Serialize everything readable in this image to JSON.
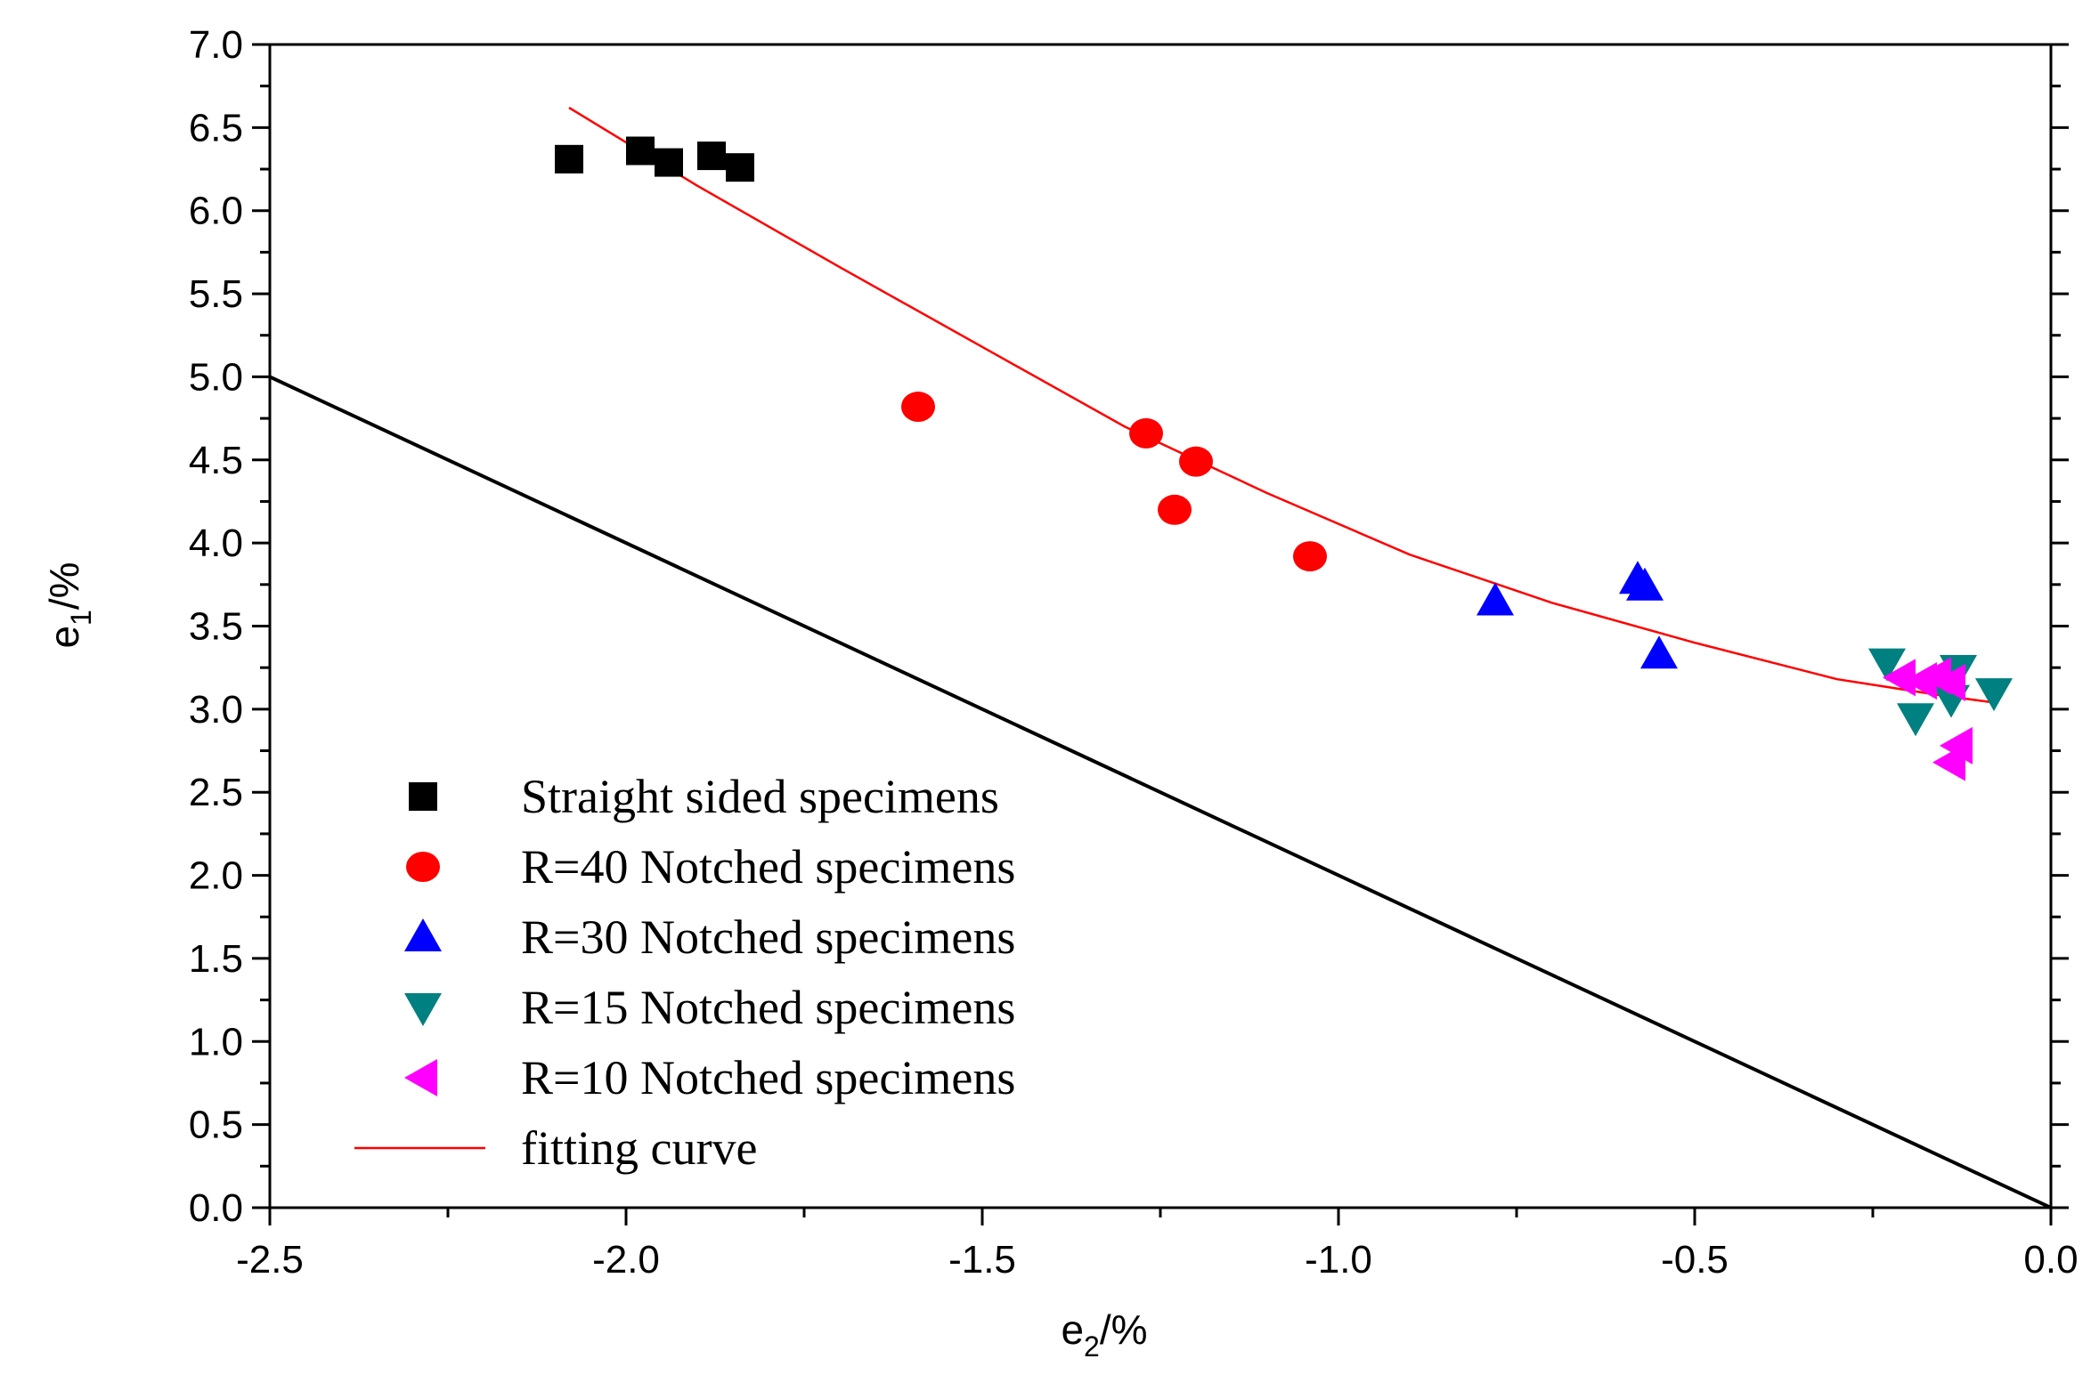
{
  "chart_data": {
    "type": "scatter",
    "title": "",
    "xlabel": {
      "base": "e",
      "sub": "2",
      "suffix": "/%"
    },
    "ylabel": {
      "base": "e",
      "sub": "1",
      "suffix": "/%"
    },
    "xlim": [
      -2.5,
      0.0
    ],
    "ylim": [
      0.0,
      7.0
    ],
    "xticks": [
      -2.5,
      -2.0,
      -1.5,
      -1.0,
      -0.5,
      0.0
    ],
    "xtick_labels": [
      "-2.5",
      "-2.0",
      "-1.5",
      "-1.0",
      "-0.5",
      "0.0"
    ],
    "yticks": [
      0.0,
      0.5,
      1.0,
      1.5,
      2.0,
      2.5,
      3.0,
      3.5,
      4.0,
      4.5,
      5.0,
      5.5,
      6.0,
      6.5,
      7.0
    ],
    "ytick_labels": [
      "0.0",
      "0.5",
      "1.0",
      "1.5",
      "2.0",
      "2.5",
      "3.0",
      "3.5",
      "4.0",
      "4.5",
      "5.0",
      "5.5",
      "6.0",
      "6.5",
      "7.0"
    ],
    "legend_position": "bottom-left",
    "series": [
      {
        "name": "Straight sided specimens",
        "marker": "square",
        "color": "#000000",
        "points": [
          [
            -2.08,
            6.31
          ],
          [
            -1.98,
            6.36
          ],
          [
            -1.94,
            6.29
          ],
          [
            -1.88,
            6.33
          ],
          [
            -1.84,
            6.26
          ]
        ]
      },
      {
        "name": "R=40 Notched specimens",
        "marker": "circle",
        "color": "#ff0000",
        "points": [
          [
            -1.59,
            4.82
          ],
          [
            -1.27,
            4.66
          ],
          [
            -1.2,
            4.49
          ],
          [
            -1.23,
            4.2
          ],
          [
            -1.04,
            3.92
          ]
        ]
      },
      {
        "name": "R=30 Notched specimens",
        "marker": "triangle-up",
        "color": "#0000ff",
        "points": [
          [
            -0.78,
            3.65
          ],
          [
            -0.58,
            3.78
          ],
          [
            -0.57,
            3.74
          ],
          [
            -0.55,
            3.33
          ]
        ]
      },
      {
        "name": "R=15 Notched specimens",
        "marker": "triangle-down",
        "color": "#008080",
        "points": [
          [
            -0.23,
            3.28
          ],
          [
            -0.19,
            2.95
          ],
          [
            -0.14,
            3.06
          ],
          [
            -0.13,
            3.24
          ],
          [
            -0.08,
            3.1
          ]
        ]
      },
      {
        "name": "R=10 Notched specimens",
        "marker": "triangle-left",
        "color": "#ff00ff",
        "points": [
          [
            -0.21,
            3.19
          ],
          [
            -0.18,
            3.17
          ],
          [
            -0.16,
            3.2
          ],
          [
            -0.14,
            3.16
          ],
          [
            -0.13,
            2.78
          ],
          [
            -0.14,
            2.68
          ]
        ]
      },
      {
        "name": "fitting curve",
        "type": "line",
        "color": "#ff0000",
        "x": [
          -2.08,
          -1.9,
          -1.7,
          -1.5,
          -1.3,
          -1.1,
          -0.9,
          -0.7,
          -0.5,
          -0.3,
          -0.15,
          -0.08
        ],
        "y": [
          6.62,
          6.15,
          5.66,
          5.18,
          4.7,
          4.3,
          3.93,
          3.64,
          3.4,
          3.18,
          3.08,
          3.04
        ]
      },
      {
        "name": "reference line",
        "type": "line",
        "color": "#000000",
        "in_legend": false,
        "x": [
          -2.5,
          0.0
        ],
        "y": [
          5.0,
          0.0
        ]
      }
    ]
  }
}
